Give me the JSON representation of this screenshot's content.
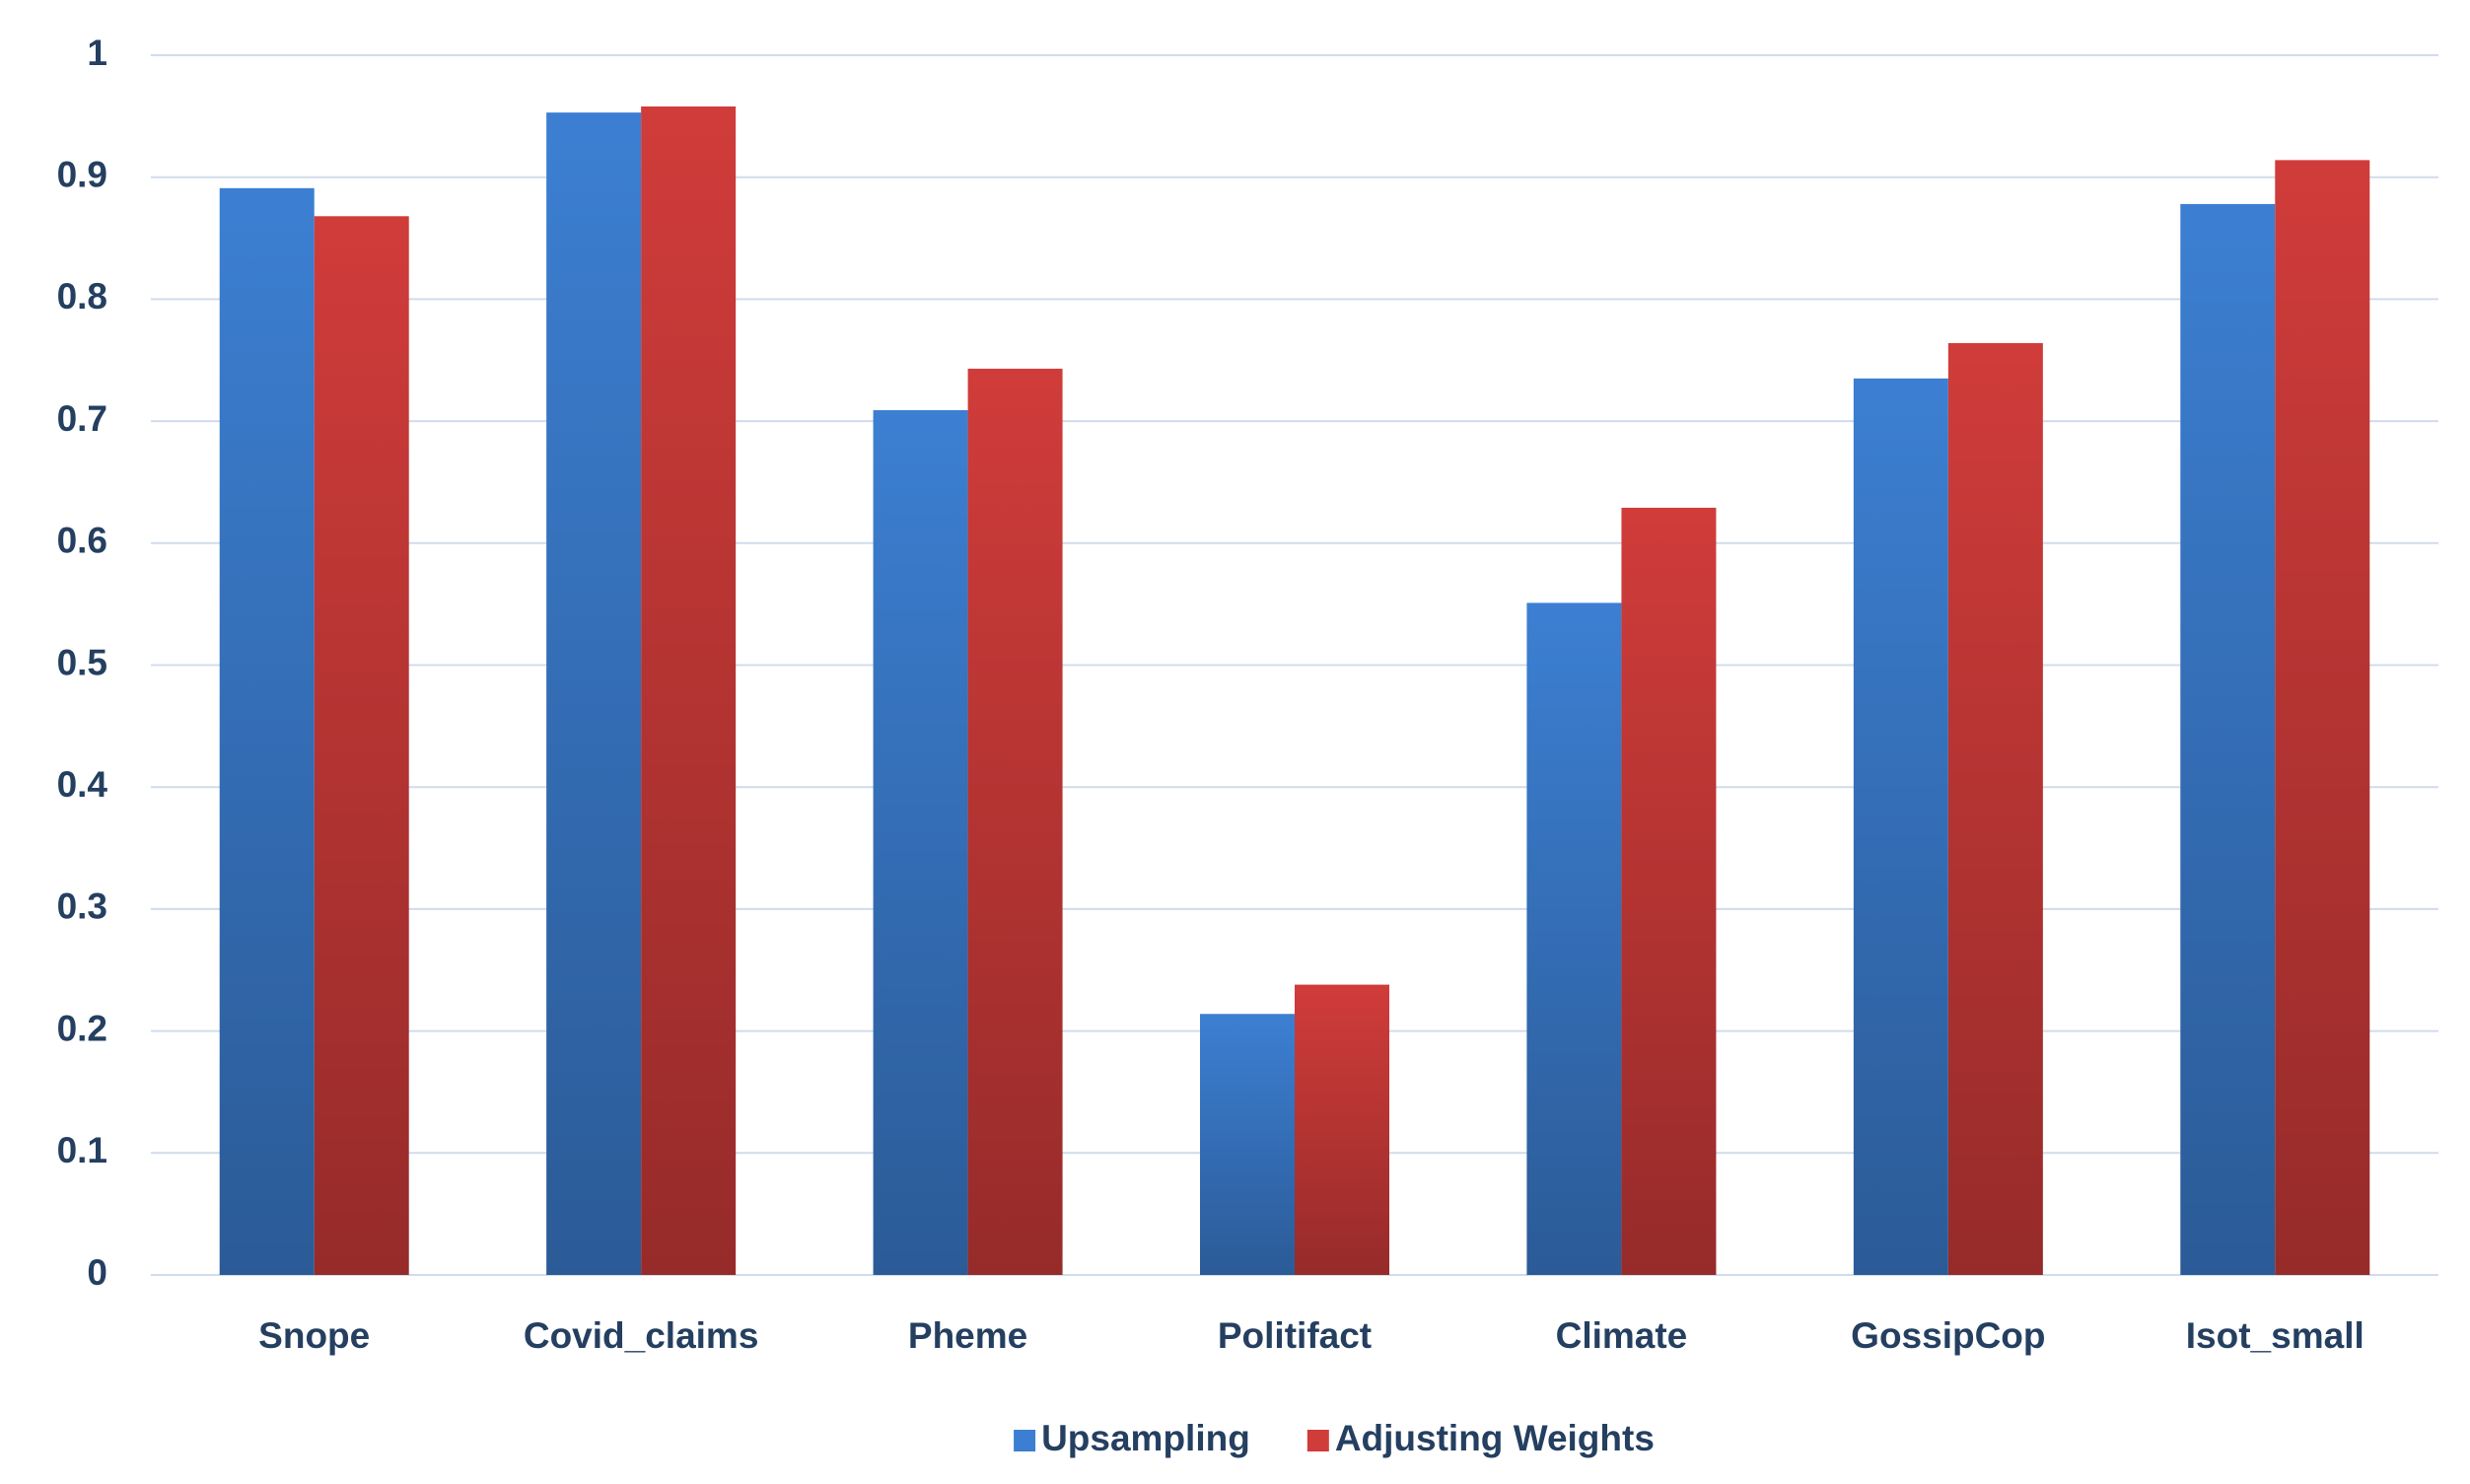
{
  "chart_data": {
    "type": "bar",
    "categories": [
      "Snope",
      "Covid_claims",
      "Pheme",
      "Politifact",
      "Climate",
      "GossipCop",
      "Isot_small"
    ],
    "series": [
      {
        "name": "Upsampling",
        "color": "#3c7fd2",
        "values": [
          0.891,
          0.953,
          0.709,
          0.214,
          0.551,
          0.735,
          0.878
        ]
      },
      {
        "name": "Adjusting Weights",
        "color": "#d03c3a",
        "values": [
          0.868,
          0.958,
          0.743,
          0.238,
          0.629,
          0.764,
          0.914
        ]
      }
    ],
    "ylim": [
      0,
      1
    ],
    "yticks": [
      0,
      0.1,
      0.2,
      0.3,
      0.4,
      0.5,
      0.6,
      0.7,
      0.8,
      0.9,
      1
    ],
    "grid": true,
    "legend": "bottom"
  }
}
